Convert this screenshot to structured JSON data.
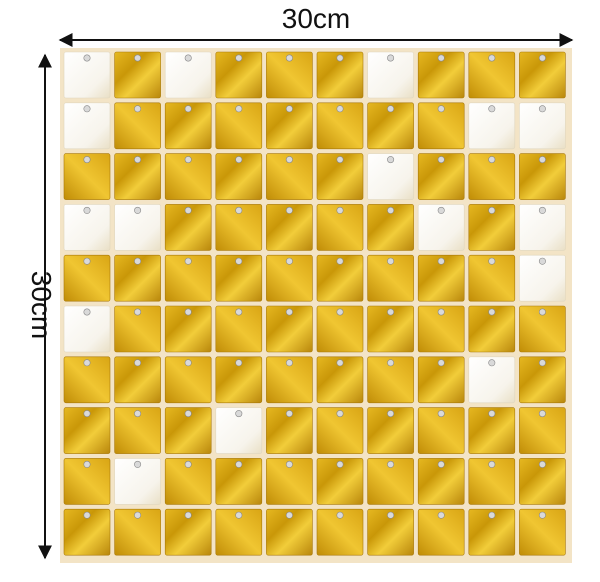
{
  "labels": {
    "width": "30cm",
    "height": "30cm"
  }
}
